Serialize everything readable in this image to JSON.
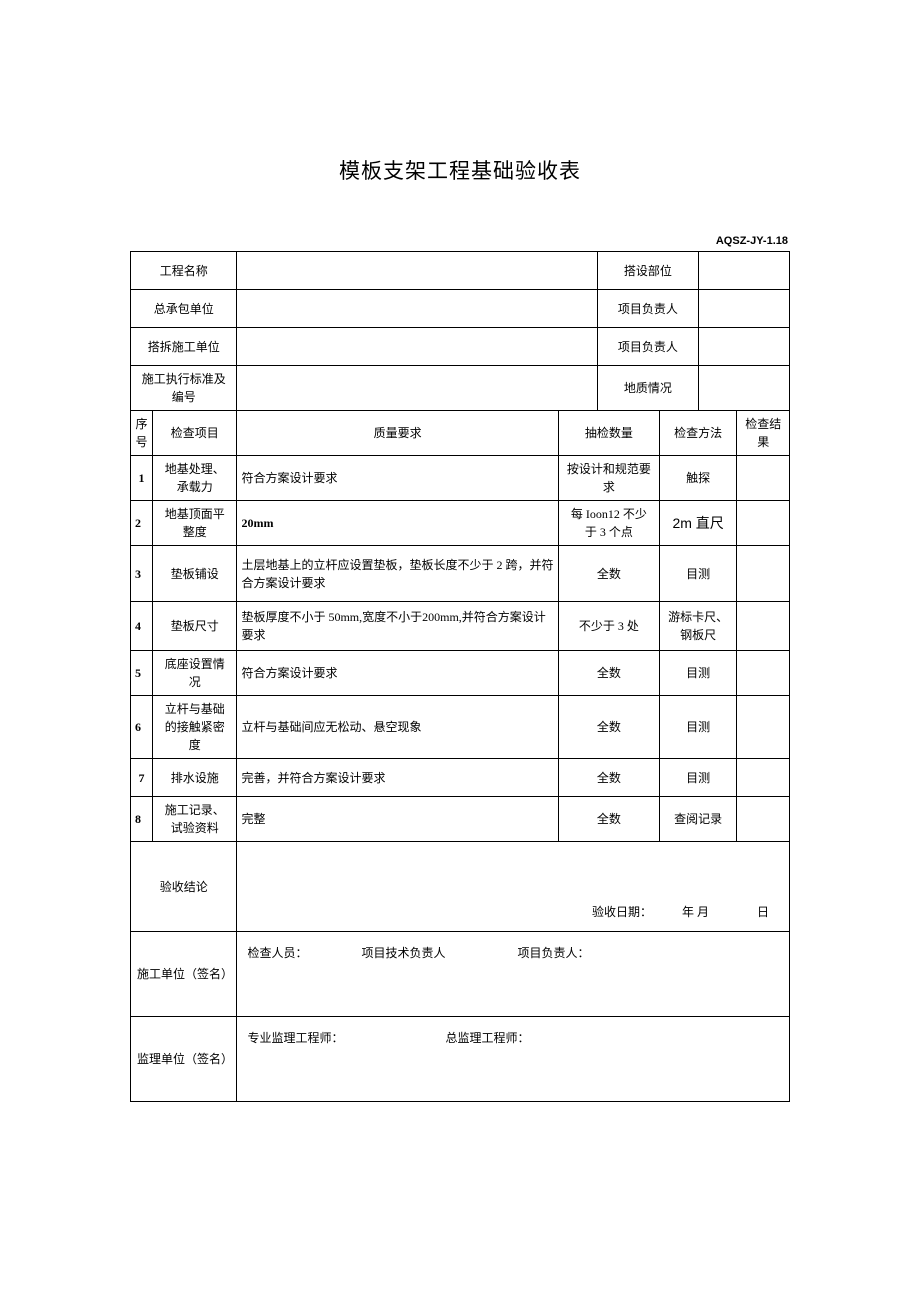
{
  "title": "模板支架工程基础验收表",
  "form_code": "AQSZ-JY-1.18",
  "header": {
    "project_name_label": "工程名称",
    "project_name_value": "",
    "erect_part_label": "搭设部位",
    "erect_part_value": "",
    "contractor_label": "总承包单位",
    "contractor_value": "",
    "pm1_label": "项目负责人",
    "pm1_value": "",
    "erection_unit_label": "搭拆施工单位",
    "erection_unit_value": "",
    "pm2_label": "项目负责人",
    "pm2_value": "",
    "std_label": "施工执行标准及编号",
    "std_value": "",
    "geo_label": "地质情况",
    "geo_value": ""
  },
  "columns": {
    "seq": "序号",
    "item": "检查项目",
    "quality": "质量要求",
    "qty": "抽检数量",
    "method": "检查方法",
    "result": "检查结果"
  },
  "rows": [
    {
      "seq": "1",
      "item": "地基处理、承载力",
      "quality": "符合方案设计要求",
      "qty": "按设计和规范要求",
      "method": "触探",
      "result": ""
    },
    {
      "seq": "2",
      "item": "地基顶面平整度",
      "quality": "20mm",
      "qty": "每 Ioon12 不少于 3 个点",
      "method": "2m 直尺",
      "result": ""
    },
    {
      "seq": "3",
      "item": "垫板铺设",
      "quality": "土层地基上的立杆应设置垫板，垫板长度不少于 2 跨，并符合方案设计要求",
      "qty": "全数",
      "method": "目测",
      "result": ""
    },
    {
      "seq": "4",
      "item": "垫板尺寸",
      "quality": "垫板厚度不小于 50mm,宽度不小于200mm,并符合方案设计要求",
      "qty": "不少于 3 处",
      "method": "游标卡尺、钢板尺",
      "result": ""
    },
    {
      "seq": "5",
      "item": "底座设置情况",
      "quality": "符合方案设计要求",
      "qty": "全数",
      "method": "目测",
      "result": ""
    },
    {
      "seq": "6",
      "item": "立杆与基础的接触紧密度",
      "quality": "立杆与基础间应无松动、悬空现象",
      "qty": "全数",
      "method": "目测",
      "result": ""
    },
    {
      "seq": "7",
      "item": "排水设施",
      "quality": "完善，并符合方案设计要求",
      "qty": "全数",
      "method": "目测",
      "result": ""
    },
    {
      "seq": "8",
      "item": "施工记录、试验资料",
      "quality": "完整",
      "qty": "全数",
      "method": "查阅记录",
      "result": ""
    }
  ],
  "conclusion": {
    "label": "验收结论",
    "date_text": "验收日期：　　　年 月　　　　日"
  },
  "signatures": {
    "construction_label": "施工单位（签名）",
    "construction_text": "检查人员：　　　　　项目技术负责人　　　　　　项目负责人：",
    "supervision_label": "监理单位（签名）",
    "supervision_text": "专业监理工程师：　　　　　　　　　总监理工程师："
  },
  "colors": {
    "border": "#000000",
    "text": "#000000",
    "background": "#ffffff"
  }
}
